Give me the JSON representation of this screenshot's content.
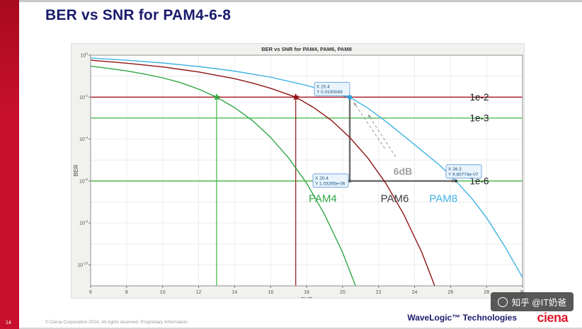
{
  "slide": {
    "page_number": "14",
    "title": "BER vs SNR for PAM4-6-8",
    "footer": {
      "copyright": "© Ciena Corporation 2024. All rights reserved. Proprietary Information.",
      "brand": "WaveLogic™ Technologies",
      "logo": "ciena"
    },
    "watermark": "知乎 @IT奶爸",
    "colors": {
      "accent_red": "#c8102e",
      "title_navy": "#1a1b6b"
    }
  },
  "chart_data": {
    "type": "line",
    "title": "BER vs SNR for PAM4, PAM6, PAM8",
    "xlabel": "SNR",
    "ylabel": "BER",
    "xlim": [
      6,
      30
    ],
    "x_ticks": [
      6,
      8,
      10,
      12,
      14,
      16,
      18,
      20,
      22,
      24,
      26,
      28,
      30
    ],
    "ylim_exp": [
      0,
      -11
    ],
    "y_tick_exponents": [
      0,
      -2,
      -4,
      -6,
      -8,
      -10
    ],
    "grid": true,
    "legend": "none",
    "series": [
      {
        "name": "PAM4",
        "color": "#2fa844",
        "points": [
          [
            6,
            -0.52
          ],
          [
            7,
            -0.63
          ],
          [
            8,
            -0.75
          ],
          [
            9,
            -0.9
          ],
          [
            10,
            -1.08
          ],
          [
            11,
            -1.31
          ],
          [
            12,
            -1.62
          ],
          [
            13,
            -2
          ],
          [
            14,
            -2.5
          ],
          [
            15,
            -3.12
          ],
          [
            16,
            -3.92
          ],
          [
            17,
            -4.9
          ],
          [
            18,
            -6.1
          ],
          [
            19,
            -7.6
          ],
          [
            20,
            -9.4
          ],
          [
            20.9,
            -11.4
          ]
        ]
      },
      {
        "name": "PAM6",
        "color": "#8e1212",
        "points": [
          [
            6,
            -0.24
          ],
          [
            8,
            -0.38
          ],
          [
            10,
            -0.56
          ],
          [
            12,
            -0.8
          ],
          [
            14,
            -1.12
          ],
          [
            15,
            -1.33
          ],
          [
            16,
            -1.58
          ],
          [
            17,
            -1.88
          ],
          [
            17.4,
            -2
          ],
          [
            18.4,
            -2.5
          ],
          [
            19.4,
            -3.12
          ],
          [
            20.4,
            -3.92
          ],
          [
            21.4,
            -4.9
          ],
          [
            22.4,
            -6.1
          ],
          [
            23.4,
            -7.6
          ],
          [
            24.4,
            -9.4
          ],
          [
            25.3,
            -11.4
          ]
        ]
      },
      {
        "name": "PAM8",
        "color": "#3fb3e4",
        "points": [
          [
            6,
            -0.14
          ],
          [
            8,
            -0.24
          ],
          [
            10,
            -0.37
          ],
          [
            12,
            -0.54
          ],
          [
            14,
            -0.76
          ],
          [
            16,
            -1.05
          ],
          [
            18,
            -1.44
          ],
          [
            19,
            -1.69
          ],
          [
            20,
            -1.93
          ],
          [
            20.4,
            -2
          ],
          [
            21.4,
            -2.52
          ],
          [
            22.4,
            -3.15
          ],
          [
            23.4,
            -3.85
          ],
          [
            24.4,
            -4.55
          ],
          [
            25.4,
            -5.25
          ],
          [
            26.3,
            -6
          ],
          [
            27.2,
            -6.85
          ],
          [
            28,
            -7.75
          ],
          [
            29,
            -9.1
          ],
          [
            30,
            -10.6
          ]
        ]
      }
    ],
    "series_labels": [
      {
        "text": "PAM4",
        "x": 18.9,
        "exp": -7.0,
        "color": "#2fa844"
      },
      {
        "text": "PAM6",
        "x": 22.9,
        "exp": -7.0,
        "color": "#3a3a3a"
      },
      {
        "text": "PAM8",
        "x": 25.6,
        "exp": -7.0,
        "color": "#3fb3e4"
      }
    ],
    "reference_lines": [
      {
        "label": "1e-2",
        "exp": -2,
        "color": "#a3151f"
      },
      {
        "label": "1e-3",
        "exp": -3,
        "color": "#3db53f"
      },
      {
        "label": "1e-6",
        "exp": -6,
        "color": "#3db53f"
      }
    ],
    "threshold_label_x": 27.6,
    "droplines": [
      {
        "x": 13,
        "exp_from": -2,
        "exp_to": -11,
        "color": "#3db53f"
      },
      {
        "x": 17.4,
        "exp_from": -2,
        "exp_to": -11,
        "color": "#8e1212"
      }
    ],
    "markers": [
      {
        "x": 13,
        "exp": -2,
        "shape": "star",
        "color": "#2fa844"
      },
      {
        "x": 17.4,
        "exp": -2,
        "shape": "star",
        "color": "#8e1212"
      },
      {
        "x": 20.4,
        "exp": -2,
        "shape": "circle",
        "color": "#2e9fd8"
      },
      {
        "x": 20.4,
        "exp": -6,
        "shape": "dot",
        "color": "#555555"
      },
      {
        "x": 26.3,
        "exp": -6,
        "shape": "dot",
        "color": "#444444"
      }
    ],
    "gap_annotation": {
      "x_start": 20.4,
      "x_end": 26.3,
      "exp_top": -2,
      "exp_bottom": -6,
      "label": "6dB",
      "line_color": "#6a6a6a",
      "label_color": "#a0a0a0"
    },
    "guide_arrows": [
      {
        "from": [
          22.35,
          -4.45
        ],
        "to": [
          20.62,
          -2.25
        ]
      },
      {
        "from": [
          22.95,
          -4.85
        ],
        "to": [
          21.42,
          -2.82
        ]
      }
    ],
    "datatips": [
      {
        "x": 20.4,
        "exp": -2,
        "lines": [
          "X 20.4",
          "Y 0.0100049"
        ],
        "align": "above-left"
      },
      {
        "x": 20.4,
        "exp": -6,
        "lines": [
          "X 20.4",
          "Y 1.03265e-06"
        ],
        "align": "left"
      },
      {
        "x": 26.3,
        "exp": -6,
        "lines": [
          "X 26.3",
          "Y 9.80774e-07"
        ],
        "align": "above"
      }
    ]
  }
}
